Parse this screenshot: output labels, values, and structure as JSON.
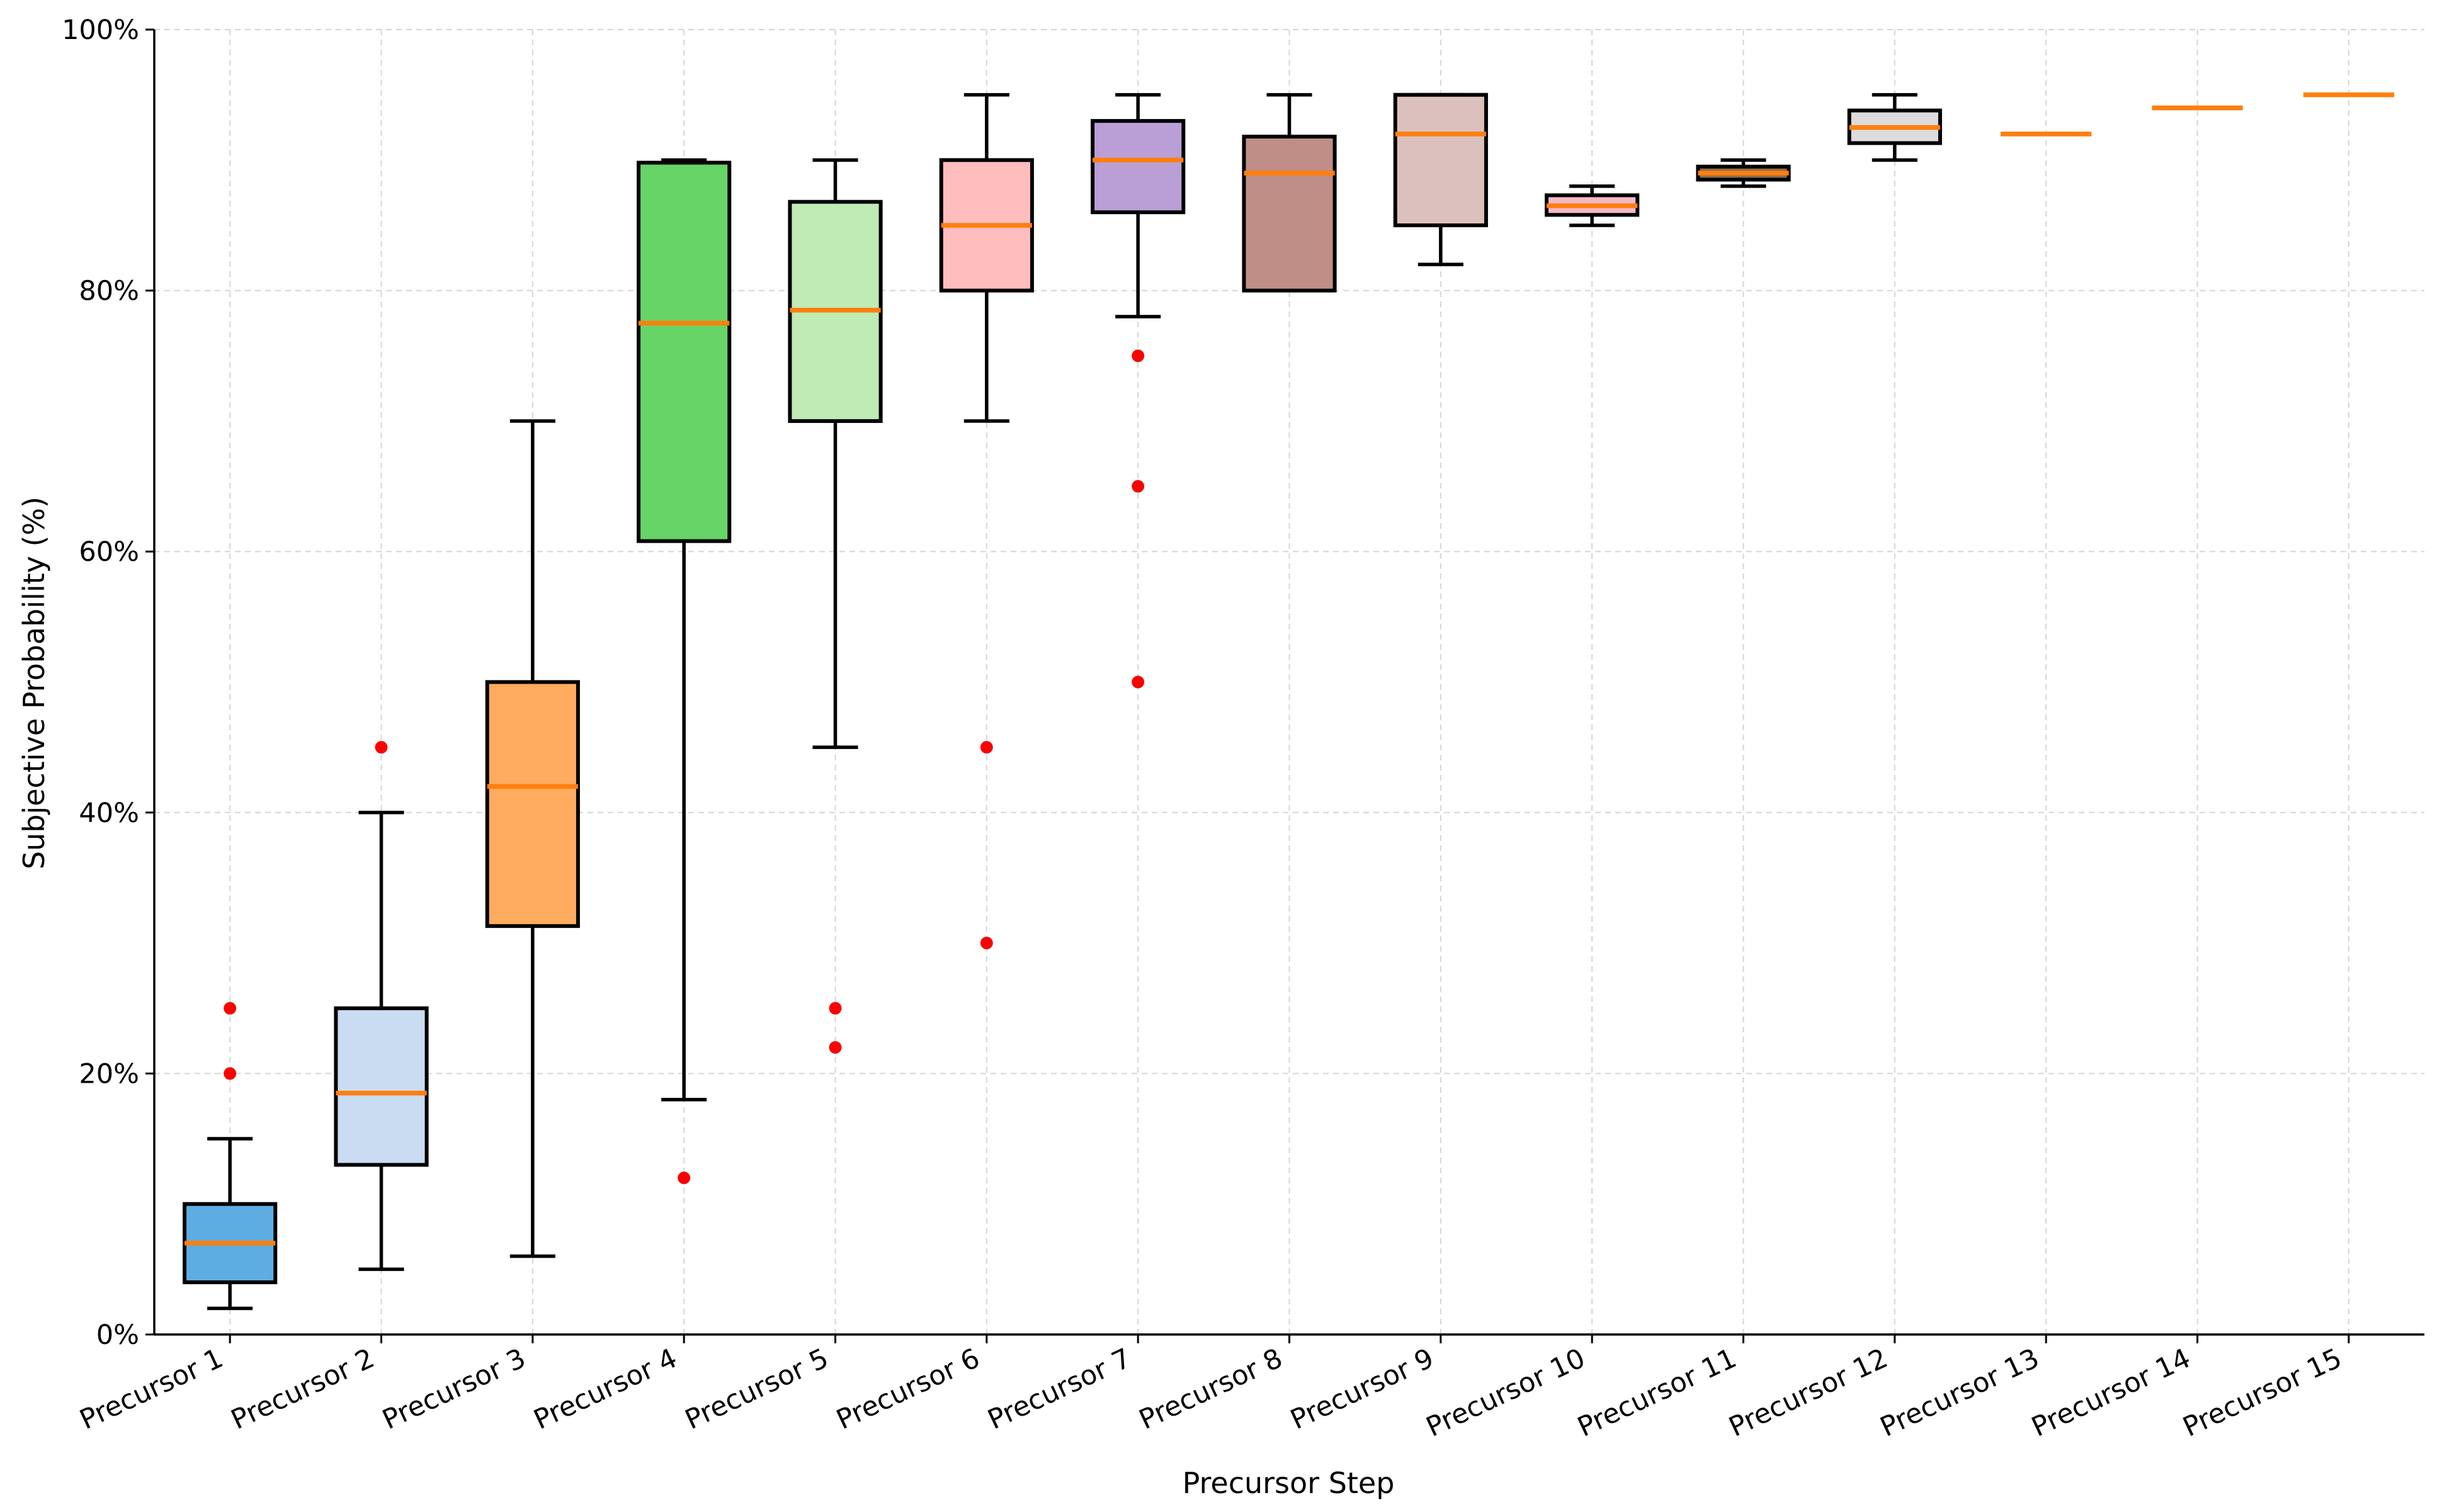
{
  "chart_data": {
    "type": "box",
    "title": "",
    "xlabel": "Precursor Step",
    "ylabel": "Subjective Probability (%)",
    "ylim": [
      0,
      100
    ],
    "y_ticks": [
      {
        "value": 0,
        "label": "0%"
      },
      {
        "value": 20,
        "label": "20%"
      },
      {
        "value": 40,
        "label": "40%"
      },
      {
        "value": 60,
        "label": "60%"
      },
      {
        "value": 80,
        "label": "80%"
      },
      {
        "value": 100,
        "label": "100%"
      }
    ],
    "grid": true,
    "categories": [
      "Precursor 1",
      "Precursor 2",
      "Precursor 3",
      "Precursor 4",
      "Precursor 5",
      "Precursor 6",
      "Precursor 7",
      "Precursor 8",
      "Precursor 9",
      "Precursor 10",
      "Precursor 11",
      "Precursor 12",
      "Precursor 13",
      "Precursor 14",
      "Precursor 15"
    ],
    "series": [
      {
        "name": "Precursor 1",
        "whisker_low": 2,
        "q1": 4,
        "median": 7,
        "q3": 10,
        "whisker_high": 15,
        "outliers": [
          20,
          25
        ],
        "color": "#5dade2"
      },
      {
        "name": "Precursor 2",
        "whisker_low": 5,
        "q1": 13,
        "median": 18.5,
        "q3": 25,
        "whisker_high": 40,
        "outliers": [
          45
        ],
        "color": "#c9dcf2"
      },
      {
        "name": "Precursor 3",
        "whisker_low": 6,
        "q1": 31.3,
        "median": 42,
        "q3": 50,
        "whisker_high": 70,
        "outliers": [],
        "color": "#ffab60"
      },
      {
        "name": "Precursor 4",
        "whisker_low": 18,
        "q1": 60.8,
        "median": 77.5,
        "q3": 89.8,
        "whisker_high": 90,
        "outliers": [
          12
        ],
        "color": "#66d466"
      },
      {
        "name": "Precursor 5",
        "whisker_low": 45,
        "q1": 70,
        "median": 78.5,
        "q3": 86.8,
        "whisker_high": 90,
        "outliers": [
          25,
          22
        ],
        "color": "#bfebb4"
      },
      {
        "name": "Precursor 6",
        "whisker_low": 70,
        "q1": 80,
        "median": 85,
        "q3": 90,
        "whisker_high": 95,
        "outliers": [
          45,
          30
        ],
        "color": "#ffbdbe"
      },
      {
        "name": "Precursor 7",
        "whisker_low": 78,
        "q1": 86,
        "median": 90,
        "q3": 93,
        "whisker_high": 95,
        "outliers": [
          75,
          65,
          50
        ],
        "color": "#b99fd6"
      },
      {
        "name": "Precursor 8",
        "whisker_low": 80,
        "q1": 80,
        "median": 89,
        "q3": 91.8,
        "whisker_high": 95,
        "outliers": [],
        "color": "#bf8e86"
      },
      {
        "name": "Precursor 9",
        "whisker_low": 82,
        "q1": 85,
        "median": 92,
        "q3": 95,
        "whisker_high": 95,
        "outliers": [],
        "color": "#dcc0bd"
      },
      {
        "name": "Precursor 10",
        "whisker_low": 85,
        "q1": 85.8,
        "median": 86.5,
        "q3": 87.3,
        "whisker_high": 88,
        "outliers": [],
        "color": "#f4b9c8"
      },
      {
        "name": "Precursor 11",
        "whisker_low": 88,
        "q1": 88.5,
        "median": 89,
        "q3": 89.5,
        "whisker_high": 90,
        "outliers": [],
        "color": "#8c6d4f"
      },
      {
        "name": "Precursor 12",
        "whisker_low": 90,
        "q1": 91.3,
        "median": 92.5,
        "q3": 93.8,
        "whisker_high": 95,
        "outliers": [],
        "color": "#dcdcdc"
      },
      {
        "name": "Precursor 13",
        "whisker_low": 92,
        "q1": 92,
        "median": 92,
        "q3": 92,
        "whisker_high": 92,
        "outliers": [],
        "color": "#bcbd22"
      },
      {
        "name": "Precursor 14",
        "whisker_low": 94,
        "q1": 94,
        "median": 94,
        "q3": 94,
        "whisker_high": 94,
        "outliers": [],
        "color": "#17becf"
      },
      {
        "name": "Precursor 15",
        "whisker_low": 95,
        "q1": 95,
        "median": 95,
        "q3": 95,
        "whisker_high": 95,
        "outliers": [],
        "color": "#9edae5"
      }
    ]
  }
}
